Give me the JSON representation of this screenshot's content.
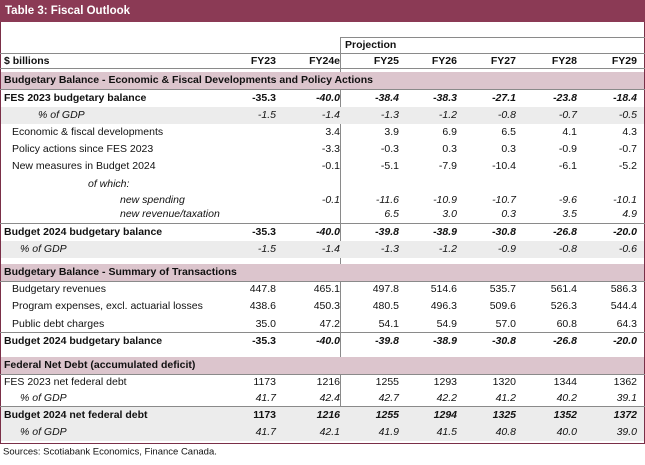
{
  "header": {
    "title": "Table 3: Fiscal Outlook",
    "projection": "Projection",
    "columns": [
      "$ billions",
      "FY23",
      "FY24e",
      "FY25",
      "FY26",
      "FY27",
      "FY28",
      "FY29"
    ]
  },
  "table": {
    "rows": [
      [
        "Budgetary Balance - Economic & Fiscal Developments and Policy Actions"
      ],
      [
        "FES 2023 budgetary balance",
        "-35.3",
        "-40.0",
        "-38.4",
        "-38.3",
        "-27.1",
        "-23.8",
        "-18.4"
      ],
      [
        "% of GDP",
        "-1.5",
        "-1.4",
        "-1.3",
        "-1.2",
        "-0.8",
        "-0.7",
        "-0.5"
      ],
      [
        "Economic & fiscal developments",
        null,
        "3.4",
        "3.9",
        "6.9",
        "6.5",
        "4.1",
        "4.3"
      ],
      [
        "Policy actions since FES 2023",
        null,
        "-3.3",
        "-0.3",
        "0.3",
        "0.3",
        "-0.9",
        "-0.7"
      ],
      [
        "New measures in Budget 2024",
        null,
        "-0.1",
        "-5.1",
        "-7.9",
        "-10.4",
        "-6.1",
        "-5.2"
      ],
      [
        "of which:"
      ],
      [
        "new spending",
        null,
        "-0.1",
        "-11.6",
        "-10.9",
        "-10.7",
        "-9.6",
        "-10.1"
      ],
      [
        "new revenue/taxation",
        null,
        null,
        "6.5",
        "3.0",
        "0.3",
        "3.5",
        "4.9"
      ],
      [
        "Budget 2024 budgetary balance",
        "-35.3",
        "-40.0",
        "-39.8",
        "-38.9",
        "-30.8",
        "-26.8",
        "-20.0"
      ],
      [
        "% of GDP",
        "-1.5",
        "-1.4",
        "-1.3",
        "-1.2",
        "-0.9",
        "-0.8",
        "-0.6"
      ],
      [
        "Budgetary Balance - Summary of Transactions"
      ],
      [
        "Budgetary revenues",
        "447.8",
        "465.1",
        "497.8",
        "514.6",
        "535.7",
        "561.4",
        "586.3"
      ],
      [
        "Program expenses, excl. actuarial losses",
        "438.6",
        "450.3",
        "480.5",
        "496.3",
        "509.6",
        "526.3",
        "544.4"
      ],
      [
        "Public debt charges",
        "35.0",
        "47.2",
        "54.1",
        "54.9",
        "57.0",
        "60.8",
        "64.3"
      ],
      [
        "Budget 2024 budgetary balance",
        "-35.3",
        "-40.0",
        "-39.8",
        "-38.9",
        "-30.8",
        "-26.8",
        "-20.0"
      ],
      [
        "Federal Net Debt (accumulated deficit)"
      ],
      [
        "FES 2023 net federal debt",
        "1173",
        "1216",
        "1255",
        "1293",
        "1320",
        "1344",
        "1362"
      ],
      [
        "% of GDP",
        "41.7",
        "42.4",
        "42.7",
        "42.2",
        "41.2",
        "40.2",
        "39.1"
      ],
      [
        "Budget 2024 net federal debt",
        "1173",
        "1216",
        "1255",
        "1294",
        "1325",
        "1352",
        "1372"
      ],
      [
        "% of GDP",
        "41.7",
        "42.1",
        "41.9",
        "41.5",
        "40.8",
        "40.0",
        "39.0"
      ]
    ]
  },
  "footer": {
    "source": "Sources: Scotiabank Economics, Finance Canada."
  }
}
